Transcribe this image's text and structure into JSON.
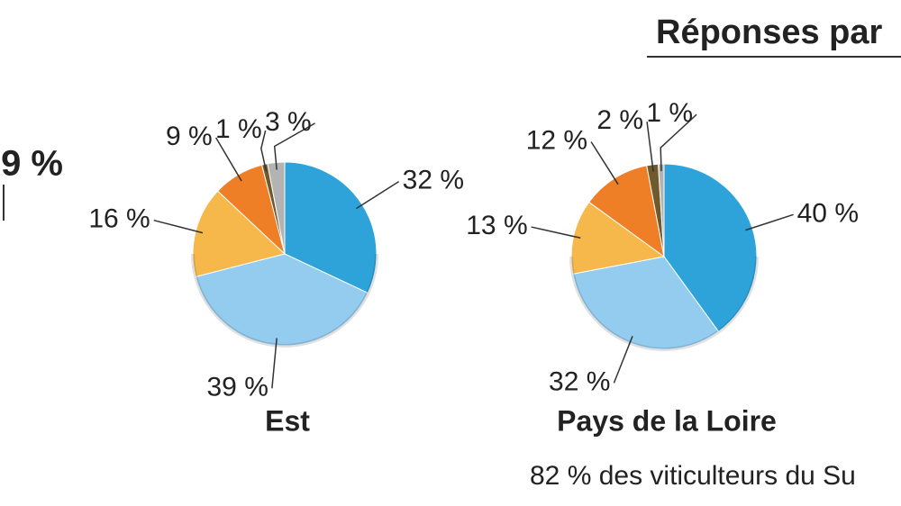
{
  "heading": "Réponses par",
  "left_fragment": "9 %",
  "note": "82 % des viticulteurs du Su",
  "chart_data": [
    {
      "type": "pie",
      "title": "Est",
      "values": [
        32,
        39,
        16,
        9,
        1,
        3
      ],
      "value_labels": [
        "32 %",
        "39 %",
        "16 %",
        "9 %",
        "1 %",
        "3 %"
      ],
      "colors": [
        "#2ea3da",
        "#93ccef",
        "#f6b84a",
        "#ee7f26",
        "#6e5a2c",
        "#b3b3b3"
      ]
    },
    {
      "type": "pie",
      "title": "Pays de la Loire",
      "values": [
        40,
        32,
        13,
        12,
        2,
        1
      ],
      "value_labels": [
        "40 %",
        "32 %",
        "13 %",
        "12 %",
        "2 %",
        "1 %"
      ],
      "colors": [
        "#2ea3da",
        "#93ccef",
        "#f6b84a",
        "#ee7f26",
        "#6e5a2c",
        "#b3b3b3"
      ]
    }
  ]
}
